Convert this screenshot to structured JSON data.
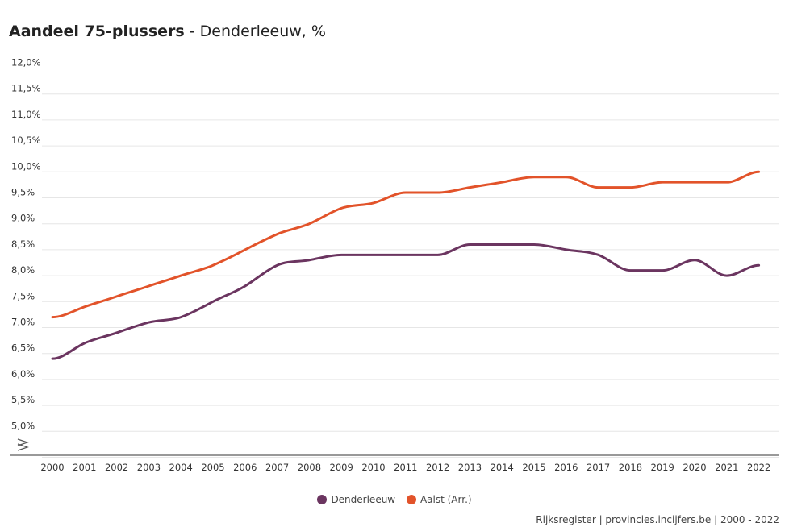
{
  "title": {
    "main": "Aandeel 75-plussers",
    "separator": " - ",
    "sub": "Denderleeuw, %"
  },
  "chart_data": {
    "type": "line",
    "x": [
      "2000",
      "2001",
      "2002",
      "2003",
      "2004",
      "2005",
      "2006",
      "2007",
      "2008",
      "2009",
      "2010",
      "2011",
      "2012",
      "2013",
      "2014",
      "2015",
      "2016",
      "2017",
      "2018",
      "2019",
      "2020",
      "2021",
      "2022"
    ],
    "series": [
      {
        "name": "Denderleeuw",
        "color": "#6b3560",
        "values": [
          6.4,
          6.7,
          6.9,
          7.1,
          7.2,
          7.5,
          7.8,
          8.2,
          8.3,
          8.4,
          8.4,
          8.4,
          8.4,
          8.6,
          8.6,
          8.6,
          8.5,
          8.4,
          8.1,
          8.1,
          8.3,
          8.0,
          8.2
        ]
      },
      {
        "name": "Aalst (Arr.)",
        "color": "#e2532a",
        "values": [
          7.2,
          7.4,
          7.6,
          7.8,
          8.0,
          8.2,
          8.5,
          8.8,
          9.0,
          9.3,
          9.4,
          9.6,
          9.6,
          9.7,
          9.8,
          9.9,
          9.9,
          9.7,
          9.7,
          9.8,
          9.8,
          9.8,
          10.0
        ]
      }
    ],
    "y_ticks": [
      "12,0%",
      "11,5%",
      "11,0%",
      "10,5%",
      "10,0%",
      "9,5%",
      "9,0%",
      "8,5%",
      "8,0%",
      "7,5%",
      "7,0%",
      "6,5%",
      "6,0%",
      "5,5%",
      "5,0%"
    ],
    "y_tick_values": [
      12.0,
      11.5,
      11.0,
      10.5,
      10.0,
      9.5,
      9.0,
      8.5,
      8.0,
      7.5,
      7.0,
      6.5,
      6.0,
      5.5,
      5.0
    ],
    "ylim": [
      5.0,
      12.0
    ],
    "axis_break": true,
    "grid": true,
    "legend_position": "bottom-center"
  },
  "source": "Rijksregister | provincies.incijfers.be | 2000 - 2022"
}
